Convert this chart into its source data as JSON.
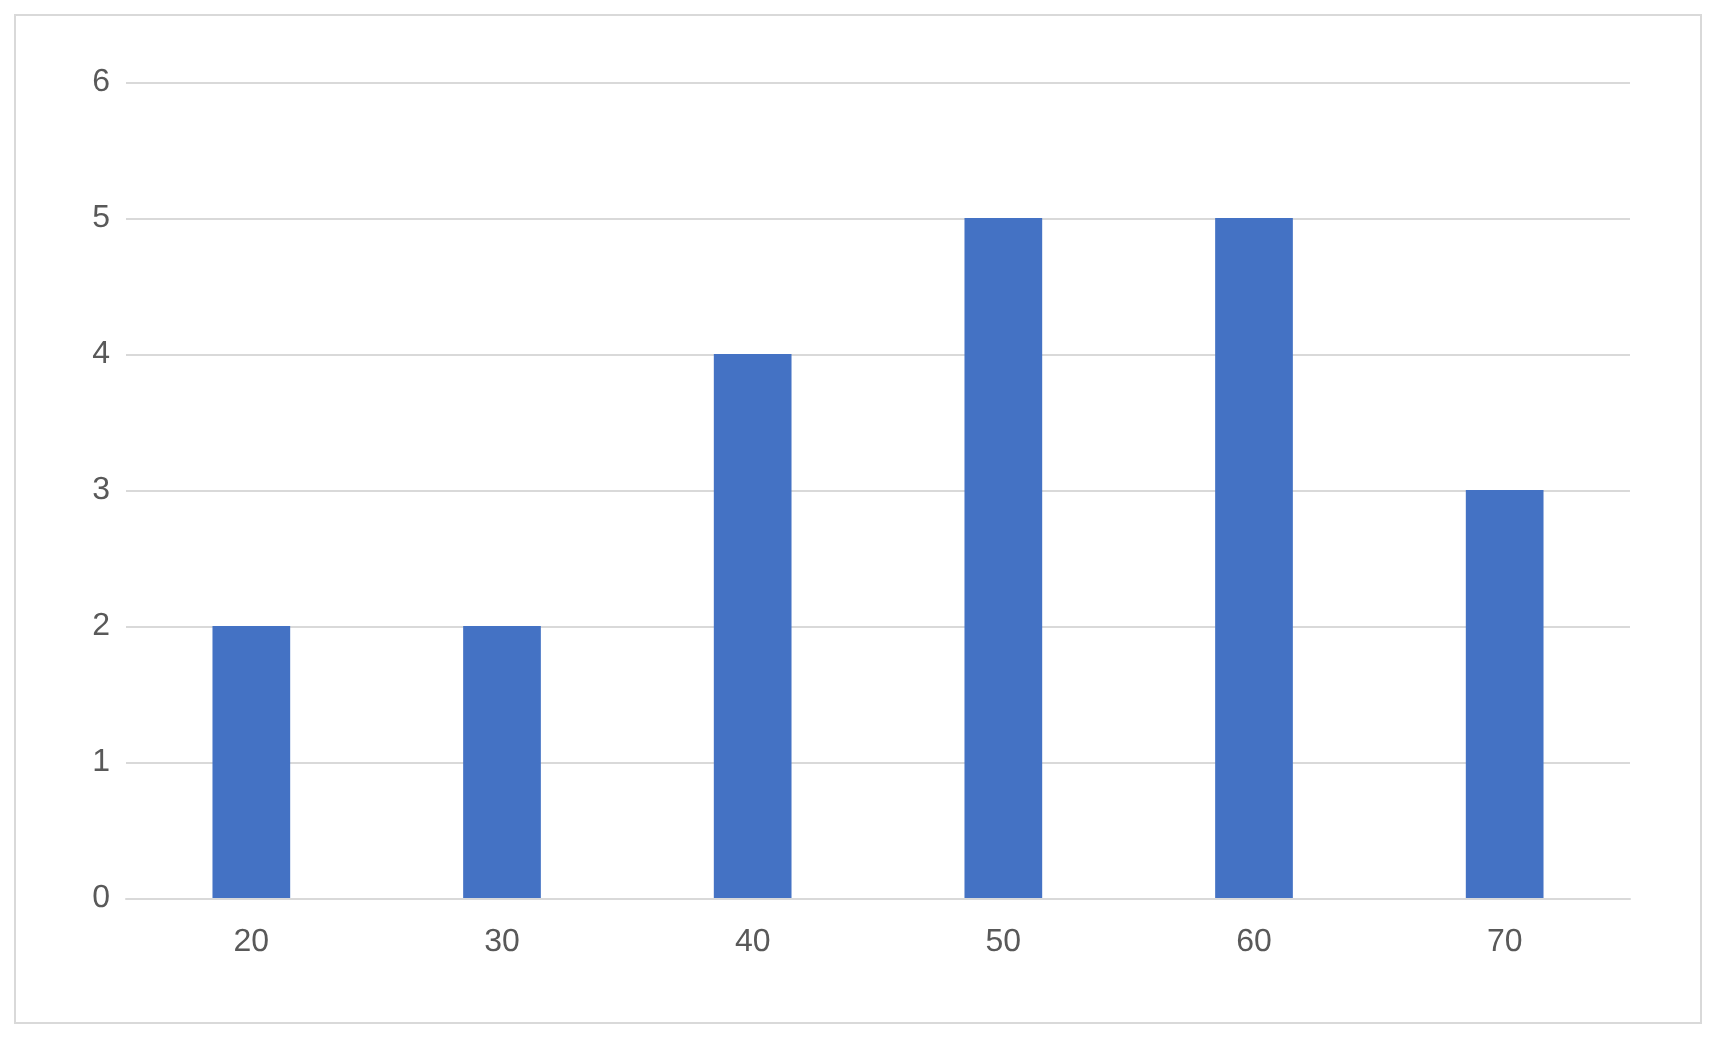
{
  "chart_data": {
    "type": "bar",
    "categories": [
      "20",
      "30",
      "40",
      "50",
      "60",
      "70"
    ],
    "values": [
      2,
      2,
      4,
      5,
      5,
      3
    ],
    "color": "#4472c4",
    "ylim": [
      0,
      6
    ],
    "yticks": [
      0,
      1,
      2,
      3,
      4,
      5,
      6
    ],
    "grid": "y"
  }
}
